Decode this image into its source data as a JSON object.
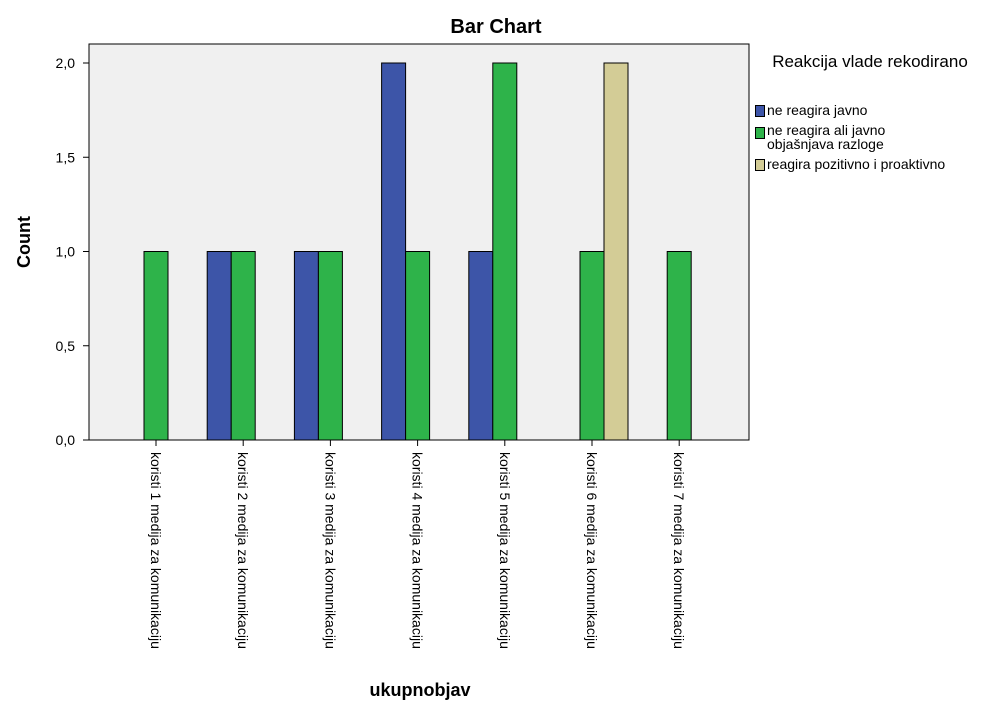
{
  "chart_data": {
    "type": "bar",
    "title": "Bar Chart",
    "xlabel": "ukupnobjav",
    "ylabel": "Count",
    "ylim": [
      0,
      2.0
    ],
    "yticks": [
      "0,0",
      "0,5",
      "1,0",
      "1,5",
      "2,0"
    ],
    "ytick_values": [
      0,
      0.5,
      1.0,
      1.5,
      2.0
    ],
    "categories": [
      "koristi 1 medija za komunikaciju",
      "koristi 2 medija za komunikaciju",
      "koristi 3 medija za komunikaciju",
      "koristi 4 medija za komunikaciju",
      "koristi 5 medija za komunikaciju",
      "koristi 6 medija za komunikaciju",
      "koristi 7 medija za komunikaciju"
    ],
    "legend_title": "Reakcija vlade rekodirano",
    "legend_placement": "right",
    "grid": false,
    "plot_background": "#f0f0f0",
    "series": [
      {
        "name": "ne reagira javno",
        "color": "#3d55a8",
        "values": [
          0,
          1,
          1,
          2,
          1,
          0,
          0
        ]
      },
      {
        "name": "ne reagira ali javno objašnjava razloge",
        "color": "#2eb34a",
        "values": [
          1,
          1,
          1,
          1,
          2,
          1,
          1
        ]
      },
      {
        "name": "reagira pozitivno i proaktivno",
        "color": "#d3cc96",
        "values": [
          0,
          0,
          0,
          0,
          0,
          2,
          0
        ]
      }
    ]
  }
}
